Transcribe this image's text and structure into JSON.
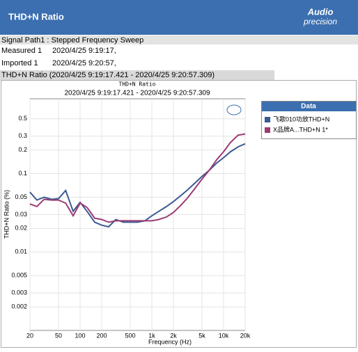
{
  "header": {
    "title": "THD+N Ratio",
    "logo": [
      "Audio",
      "precision"
    ]
  },
  "info": {
    "signal_path": "Signal Path1 : Stepped Frequency Sweep",
    "measured_label": "Measured 1",
    "measured_value": "2020/4/25 9:19:17,",
    "imported_label": "Imported 1",
    "imported_value": "2020/4/25 9:20:57,",
    "section_title": "THD+N Ratio (2020/4/25 9:19:17.421 - 2020/4/25 9:20:57.309)"
  },
  "chart_data": {
    "type": "line",
    "title": "THD+N Ratio",
    "subtitle": "2020/4/25 9:19:17.421 - 2020/4/25 9:20:57.309",
    "x_label": "Frequency (Hz)",
    "y_label": "THD+N Ratio (%)",
    "legend_title": "Data",
    "legend": "right",
    "xlog": true,
    "ylog": true,
    "grid": true,
    "x": [
      20,
      25,
      31.5,
      40,
      50,
      63,
      80,
      100,
      125,
      160,
      200,
      250,
      315,
      400,
      500,
      630,
      800,
      1000,
      1250,
      1600,
      2000,
      2500,
      3150,
      4000,
      5000,
      6300,
      8000,
      10000,
      12500,
      16000,
      20000
    ],
    "series": [
      {
        "name": "飞歌010功放THD+N",
        "color": "#3a5a92",
        "values": [
          0.058,
          0.046,
          0.05,
          0.047,
          0.048,
          0.061,
          0.033,
          0.043,
          0.033,
          0.024,
          0.022,
          0.021,
          0.026,
          0.024,
          0.024,
          0.024,
          0.025,
          0.029,
          0.033,
          0.038,
          0.044,
          0.052,
          0.062,
          0.076,
          0.092,
          0.11,
          0.136,
          0.16,
          0.19,
          0.22,
          0.24
        ]
      },
      {
        "name": "X品牌A...THD+N 1*",
        "color": "#9c3a72",
        "values": [
          0.041,
          0.038,
          0.047,
          0.046,
          0.046,
          0.042,
          0.029,
          0.042,
          0.037,
          0.027,
          0.026,
          0.024,
          0.025,
          0.025,
          0.025,
          0.025,
          0.025,
          0.025,
          0.026,
          0.028,
          0.032,
          0.039,
          0.049,
          0.065,
          0.085,
          0.11,
          0.15,
          0.19,
          0.25,
          0.31,
          0.32
        ]
      }
    ],
    "xlim": [
      20,
      20000
    ],
    "xticks": [
      20,
      50,
      100,
      200,
      500,
      {
        "value": 1000,
        "label": "1k"
      },
      {
        "value": 2000,
        "label": "2k"
      },
      {
        "value": 5000,
        "label": "5k"
      },
      {
        "value": 10000,
        "label": "10k"
      },
      {
        "value": 20000,
        "label": "20k"
      }
    ],
    "ylim": [
      0.001,
      0.9
    ],
    "yticks": [
      0.5,
      0.3,
      0.2,
      0.1,
      0.05,
      0.03,
      0.02,
      0.01,
      0.005,
      0.003,
      0.002
    ]
  }
}
